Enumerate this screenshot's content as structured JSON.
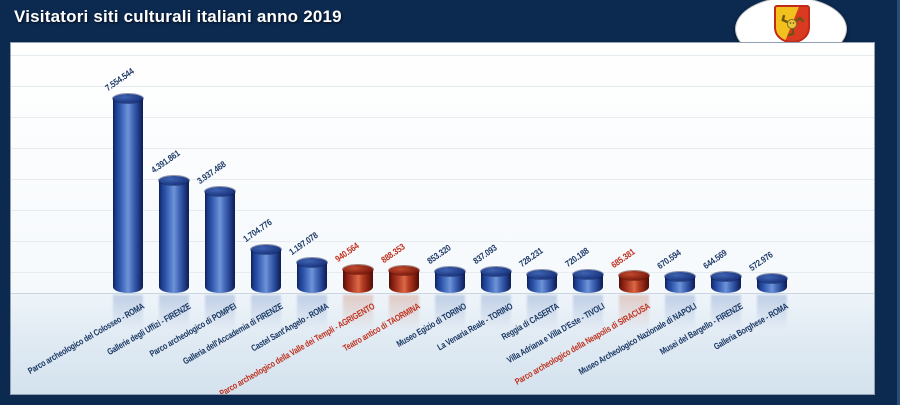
{
  "header": {
    "title": "Visitatori siti culturali italiani anno 2019"
  },
  "logo": {
    "caption": "Regione Siciliana"
  },
  "chart_data": {
    "type": "bar",
    "title": "Visitatori siti culturali italiani anno 2019",
    "xlabel": "",
    "ylabel": "",
    "ylim": [
      0,
      8000000
    ],
    "grid": true,
    "legend": "none",
    "bar_color": "#2d55ab",
    "highlight_color": "#b33b22",
    "value_label_color": "#1e3a68",
    "highlight_label_color": "#bf301d",
    "sites": [
      {
        "name": "Parco archeologico del Colosseo - ROMA",
        "value": 7554544,
        "label": "7.554.544",
        "highlight": false
      },
      {
        "name": "Gallerie degli Uffizi - FIRENZE",
        "value": 4391861,
        "label": "4.391.861",
        "highlight": false
      },
      {
        "name": "Parco archeologico di POMPEI",
        "value": 3937468,
        "label": "3.937.468",
        "highlight": false
      },
      {
        "name": "Galleria dell'Accademia di FIRENZE",
        "value": 1704776,
        "label": "1.704.776",
        "highlight": false
      },
      {
        "name": "Castel Sant'Angelo - ROMA",
        "value": 1197078,
        "label": "1.197.078",
        "highlight": false
      },
      {
        "name": "Parco archeologico della Valle dei Templi - AGRIGENTO",
        "value": 940564,
        "label": "940.564",
        "highlight": true
      },
      {
        "name": "Teatro antico di TAORMINA",
        "value": 888353,
        "label": "888.353",
        "highlight": true
      },
      {
        "name": "Museo Egizio di TORINO",
        "value": 853320,
        "label": "853.320",
        "highlight": false
      },
      {
        "name": "La Venaria Reale - TORINO",
        "value": 837093,
        "label": "837.093",
        "highlight": false
      },
      {
        "name": "Reggia di CASERTA",
        "value": 728231,
        "label": "728.231",
        "highlight": false
      },
      {
        "name": "Villa Adriana e Villa D'Este - TIVOLI",
        "value": 720188,
        "label": "720.188",
        "highlight": false
      },
      {
        "name": "Parco archeologico della Neapolis di SIRACUSA",
        "value": 685381,
        "label": "685.381",
        "highlight": true
      },
      {
        "name": "Museo Archeologico Nazionale di NAPOLI",
        "value": 670594,
        "label": "670.594",
        "highlight": false
      },
      {
        "name": "Musei del Bargello - FIRENZE",
        "value": 644569,
        "label": "644.569",
        "highlight": false
      },
      {
        "name": "Galleria Borghese - ROMA",
        "value": 572976,
        "label": "572.976",
        "highlight": false
      }
    ]
  }
}
